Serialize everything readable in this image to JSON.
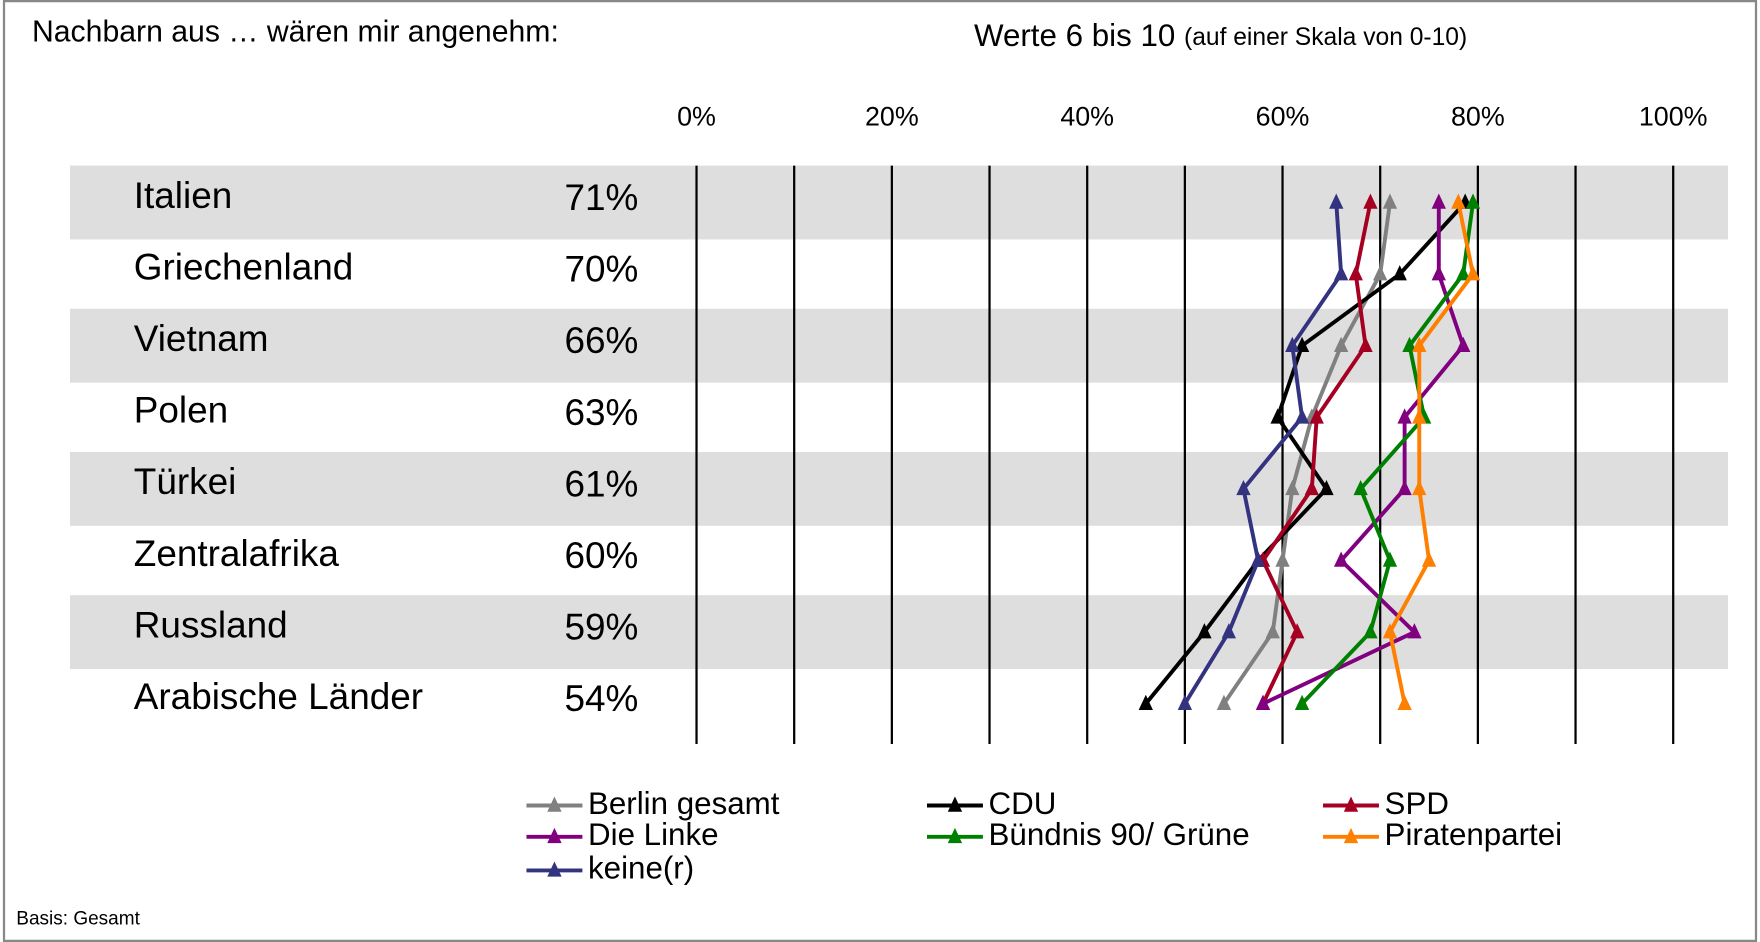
{
  "chart_data": {
    "type": "line",
    "title": "Nachbarn aus … wären mir angenehm:",
    "subtitle": "Werte 6 bis 10",
    "subtitle_note": "(auf einer Skala von 0-10)",
    "footnote": "Basis: Gesamt",
    "orientation": "horizontal",
    "categories": [
      "Italien",
      "Griechenland",
      "Vietnam",
      "Polen",
      "Türkei",
      "Zentralafrika",
      "Russland",
      "Arabische Länder"
    ],
    "xlim": [
      0,
      100
    ],
    "xticks": [
      {
        "value": 0,
        "label": "0%"
      },
      {
        "value": 20,
        "label": "20%"
      },
      {
        "value": 40,
        "label": "40%"
      },
      {
        "value": 60,
        "label": "60%"
      },
      {
        "value": 80,
        "label": "80%"
      },
      {
        "value": 100,
        "label": "100%"
      }
    ],
    "gridlines": [
      0,
      10,
      20,
      30,
      40,
      50,
      60,
      70,
      80,
      90,
      100
    ],
    "band_color": "#dedede",
    "series": [
      {
        "name": "Berlin gesamt",
        "color": "#808080",
        "values": [
          71,
          70,
          66,
          63,
          61,
          60,
          59,
          54
        ],
        "value_labels": [
          "71%",
          "70%",
          "66%",
          "63%",
          "61%",
          "60%",
          "59%",
          "54%"
        ]
      },
      {
        "name": "CDU",
        "color": "#000000",
        "values": [
          78.7,
          72,
          62,
          59.5,
          64.5,
          57.5,
          52,
          46
        ]
      },
      {
        "name": "SPD",
        "color": "#a50021",
        "values": [
          69,
          67.5,
          68.5,
          63.5,
          63,
          58,
          61.5,
          58
        ]
      },
      {
        "name": "Die Linke",
        "color": "#800080",
        "values": [
          76,
          76,
          78.5,
          72.5,
          72.5,
          66,
          73.5,
          58
        ]
      },
      {
        "name": "Bündnis 90/ Grüne",
        "color": "#008000",
        "values": [
          79.5,
          78.5,
          73,
          74.5,
          68,
          71,
          69,
          62
        ]
      },
      {
        "name": "Piratenpartei",
        "color": "#ff7f00",
        "values": [
          78,
          79.5,
          74,
          74,
          74,
          75,
          71,
          72.5
        ]
      },
      {
        "name": "keine(r)",
        "color": "#333380",
        "values": [
          65.5,
          66,
          61,
          62,
          56,
          57.5,
          54.5,
          50
        ]
      }
    ]
  }
}
